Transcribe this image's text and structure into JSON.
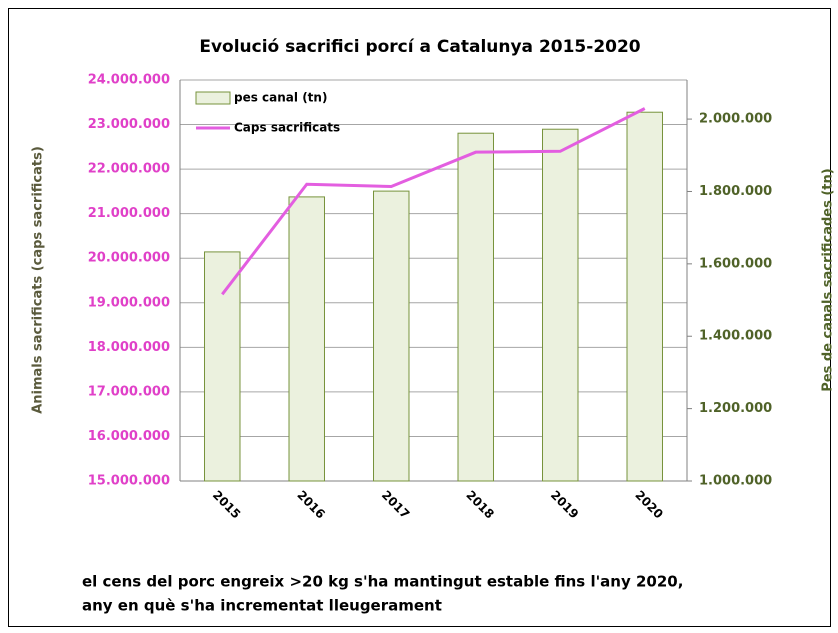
{
  "chart_data": {
    "type": "bar_line",
    "title": "Evolució sacrifici porcí a Catalunya 2015-2020",
    "ylabel": "Animals sacrificats (caps sacrificats)",
    "y2label": "Pes de canals sacrificades (tn)",
    "categories": [
      "2015",
      "2016",
      "2017",
      "2018",
      "2019",
      "2020"
    ],
    "series": [
      {
        "name": "pes canal (tn)",
        "kind": "bar",
        "axis": "y2",
        "color": "#ebf1de",
        "edge": "#77933c",
        "values": [
          1633000,
          1785000,
          1801000,
          1961000,
          1972000,
          2019000
        ]
      },
      {
        "name": "Caps sacrificats",
        "kind": "line",
        "axis": "y",
        "color": "#e35ee0",
        "values": [
          19190000,
          21660000,
          21610000,
          22380000,
          22400000,
          23360000
        ]
      }
    ],
    "ylim": [
      15000000,
      24000000
    ],
    "yticks": [
      {
        "value": 15000000,
        "label": "15.000.000"
      },
      {
        "value": 16000000,
        "label": "16.000.000"
      },
      {
        "value": 17000000,
        "label": "17.000.000"
      },
      {
        "value": 18000000,
        "label": "18.000.000"
      },
      {
        "value": 19000000,
        "label": "19.000.000"
      },
      {
        "value": 20000000,
        "label": "20.000.000"
      },
      {
        "value": 21000000,
        "label": "21.000.000"
      },
      {
        "value": 22000000,
        "label": "22.000.000"
      },
      {
        "value": 23000000,
        "label": "23.000.000"
      },
      {
        "value": 24000000,
        "label": "24.000.000"
      }
    ],
    "y2lim": [
      1000000,
      2108000
    ],
    "y2ticks": [
      {
        "value": 1000000,
        "label": "1.000.000"
      },
      {
        "value": 1200000,
        "label": "1.200.000"
      },
      {
        "value": 1400000,
        "label": "1.400.000"
      },
      {
        "value": 1600000,
        "label": "1.600.000"
      },
      {
        "value": 1800000,
        "label": "1.800.000"
      },
      {
        "value": 2000000,
        "label": "2.000.000"
      }
    ],
    "grid": true,
    "legend": "upper left",
    "ytick_color": "#e040c8",
    "y2tick_color": "#4f6228",
    "notes": [
      "el cens del porc engreix >20 kg s'ha mantingut estable fins l'any 2020,",
      "any en què s'ha incrementat lleugerament"
    ]
  }
}
